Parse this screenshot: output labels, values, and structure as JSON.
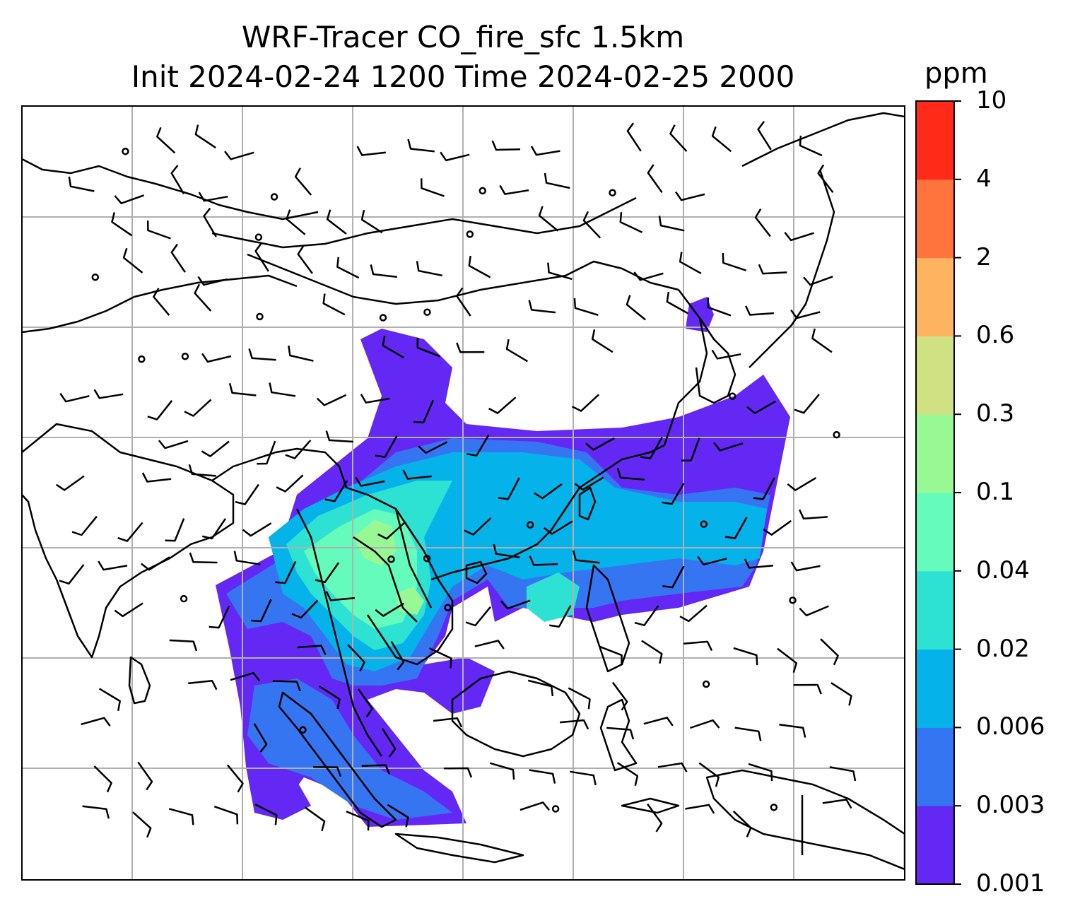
{
  "title": {
    "line1": "WRF-Tracer CO_fire_sfc 1.5km",
    "line2": "Init 2024-02-24 1200 Time 2024-02-25 2000"
  },
  "colorbar": {
    "unit": "ppm",
    "levels": [
      "0.001",
      "0.003",
      "0.006",
      "0.02",
      "0.04",
      "0.1",
      "0.3",
      "0.6",
      "2",
      "4",
      "10"
    ],
    "colors": [
      "#6428f4",
      "#3575f1",
      "#05b2ea",
      "#2ee2d3",
      "#64fbbc",
      "#98f994",
      "#d0e183",
      "#fdb360",
      "#ff733d",
      "#ff2a18"
    ]
  },
  "map": {
    "frame_color": "#000000",
    "grid_color": "#b0b0b0",
    "coastline_color": "#000000",
    "wind_barb_color": "#000000",
    "field": "CO_fire_sfc"
  }
}
